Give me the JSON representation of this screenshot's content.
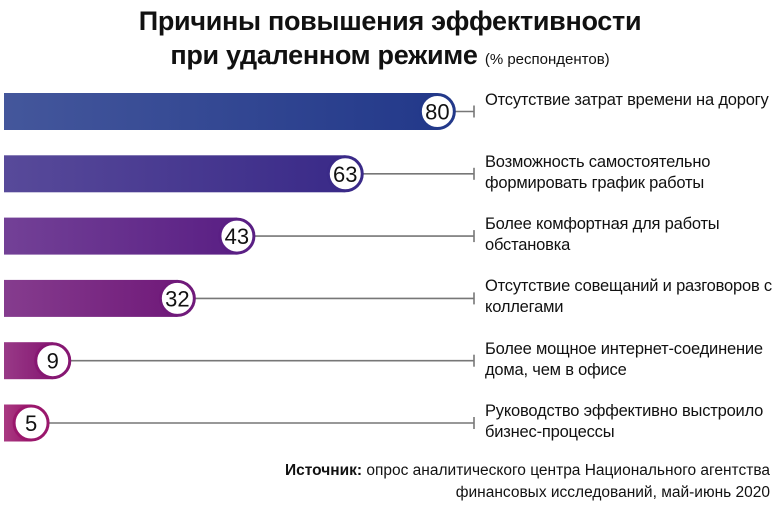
{
  "chart_data": {
    "type": "bar",
    "orientation": "horizontal",
    "title_line1": "Причины повышения эффективности",
    "title_line2": "при удаленном режиме",
    "subtitle": "(% респондентов)",
    "categories": [
      "Отсутствие затрат времени на дорогу",
      "Возможность самостоятельно формировать график работы",
      "Более комфортная для работы обстановка",
      "Отсутствие совещаний и разговоров с коллегами",
      "Более мощное интернет-соединение дома, чем в офисе",
      "Руководство эффективно выстроило бизнес-процессы"
    ],
    "values": [
      80,
      63,
      43,
      32,
      9,
      5
    ],
    "xlim": [
      0,
      84
    ],
    "grid": false,
    "legend": "none",
    "data_labels": "circle at bar end",
    "colors": [
      "#23398a",
      "#3a2a88",
      "#5a1f84",
      "#701a7a",
      "#861772",
      "#9a176c"
    ]
  },
  "source": {
    "label": "Источник:",
    "text": "опрос аналитического центра Национального агентства финансовых исследований, май-июнь 2020"
  }
}
